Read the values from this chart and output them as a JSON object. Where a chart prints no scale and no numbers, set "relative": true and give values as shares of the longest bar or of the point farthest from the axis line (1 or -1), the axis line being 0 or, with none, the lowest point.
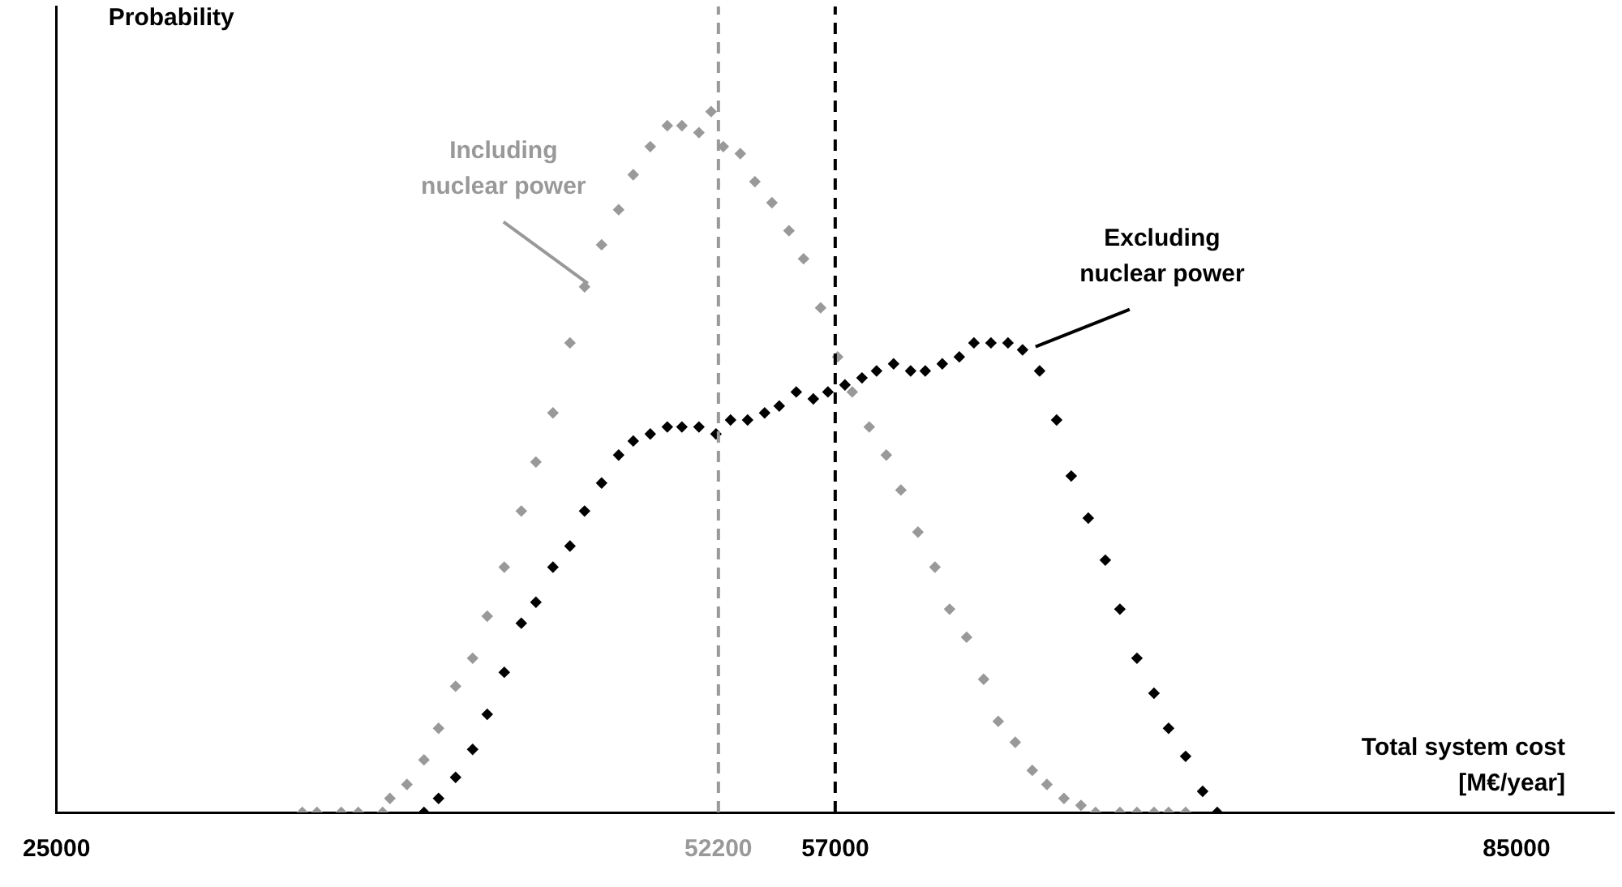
{
  "chart_data": {
    "type": "scatter",
    "relative": true,
    "marker": "diamond",
    "grid": false,
    "legend": false,
    "tick_labels": "x",
    "ylabel": "Probability",
    "xlabel": "Total system cost [M€/year]",
    "xlim": [
      25000,
      89000
    ],
    "xticks": [
      25000,
      52200,
      57000,
      85000
    ],
    "ref_lines": [
      {
        "axis": "x",
        "value": 52200,
        "color": "#999999",
        "line_style": "dashed"
      },
      {
        "axis": "x",
        "value": 57000,
        "color": "#000000",
        "line_style": "dashed"
      }
    ],
    "annotations": [
      {
        "text": "Including nuclear power",
        "x": 46700,
        "y": 0.75
      },
      {
        "text": "Excluding nuclear power",
        "x": 65100,
        "y": 0.66
      }
    ],
    "series": [
      {
        "color": "#999999",
        "x": [
          35100,
          35700,
          36700,
          37400,
          38400,
          38700,
          39400,
          40100,
          40700,
          41400,
          42100,
          42700,
          43400,
          44100,
          44700,
          45400,
          46100,
          46700,
          47400,
          48100,
          48700,
          49400,
          50100,
          50700,
          51400,
          51900,
          52400,
          53100,
          53700,
          54400,
          55100,
          55700,
          56400,
          57100,
          57700,
          58400,
          59100,
          59700,
          60400,
          61100,
          61700,
          62400,
          63100,
          63700,
          64400,
          65100,
          65700,
          66400,
          67100,
          67700,
          68700,
          69400,
          70100,
          70700,
          71400
        ],
        "values": [
          0,
          0,
          0,
          0,
          0,
          0.02,
          0.04,
          0.075,
          0.12,
          0.18,
          0.22,
          0.28,
          0.35,
          0.43,
          0.5,
          0.57,
          0.67,
          0.75,
          0.81,
          0.86,
          0.91,
          0.95,
          0.98,
          0.98,
          0.97,
          1,
          0.95,
          0.94,
          0.9,
          0.87,
          0.83,
          0.79,
          0.72,
          0.65,
          0.6,
          0.55,
          0.51,
          0.46,
          0.4,
          0.35,
          0.29,
          0.25,
          0.19,
          0.13,
          0.1,
          0.06,
          0.04,
          0.02,
          0.01,
          0,
          0,
          0,
          0,
          0,
          0
        ]
      },
      {
        "color": "#000000",
        "x": [
          40100,
          40700,
          41400,
          42100,
          42700,
          43400,
          44100,
          44700,
          45400,
          46100,
          46700,
          47400,
          48100,
          48700,
          49400,
          50100,
          50700,
          51400,
          52100,
          52700,
          53400,
          54100,
          54700,
          55400,
          56100,
          56700,
          57400,
          58100,
          58700,
          59400,
          60100,
          60700,
          61400,
          62100,
          62700,
          63400,
          64100,
          64700,
          65400,
          66100,
          66700,
          67400,
          68100,
          68700,
          69400,
          70100,
          70700,
          71400,
          72100,
          72700
        ],
        "values": [
          0,
          0.02,
          0.05,
          0.09,
          0.14,
          0.2,
          0.27,
          0.3,
          0.35,
          0.38,
          0.43,
          0.47,
          0.51,
          0.53,
          0.54,
          0.55,
          0.55,
          0.55,
          0.54,
          0.56,
          0.56,
          0.57,
          0.58,
          0.6,
          0.59,
          0.6,
          0.61,
          0.62,
          0.63,
          0.64,
          0.63,
          0.63,
          0.64,
          0.65,
          0.67,
          0.67,
          0.67,
          0.66,
          0.63,
          0.56,
          0.48,
          0.42,
          0.36,
          0.29,
          0.22,
          0.17,
          0.12,
          0.08,
          0.03,
          0
        ]
      }
    ]
  }
}
